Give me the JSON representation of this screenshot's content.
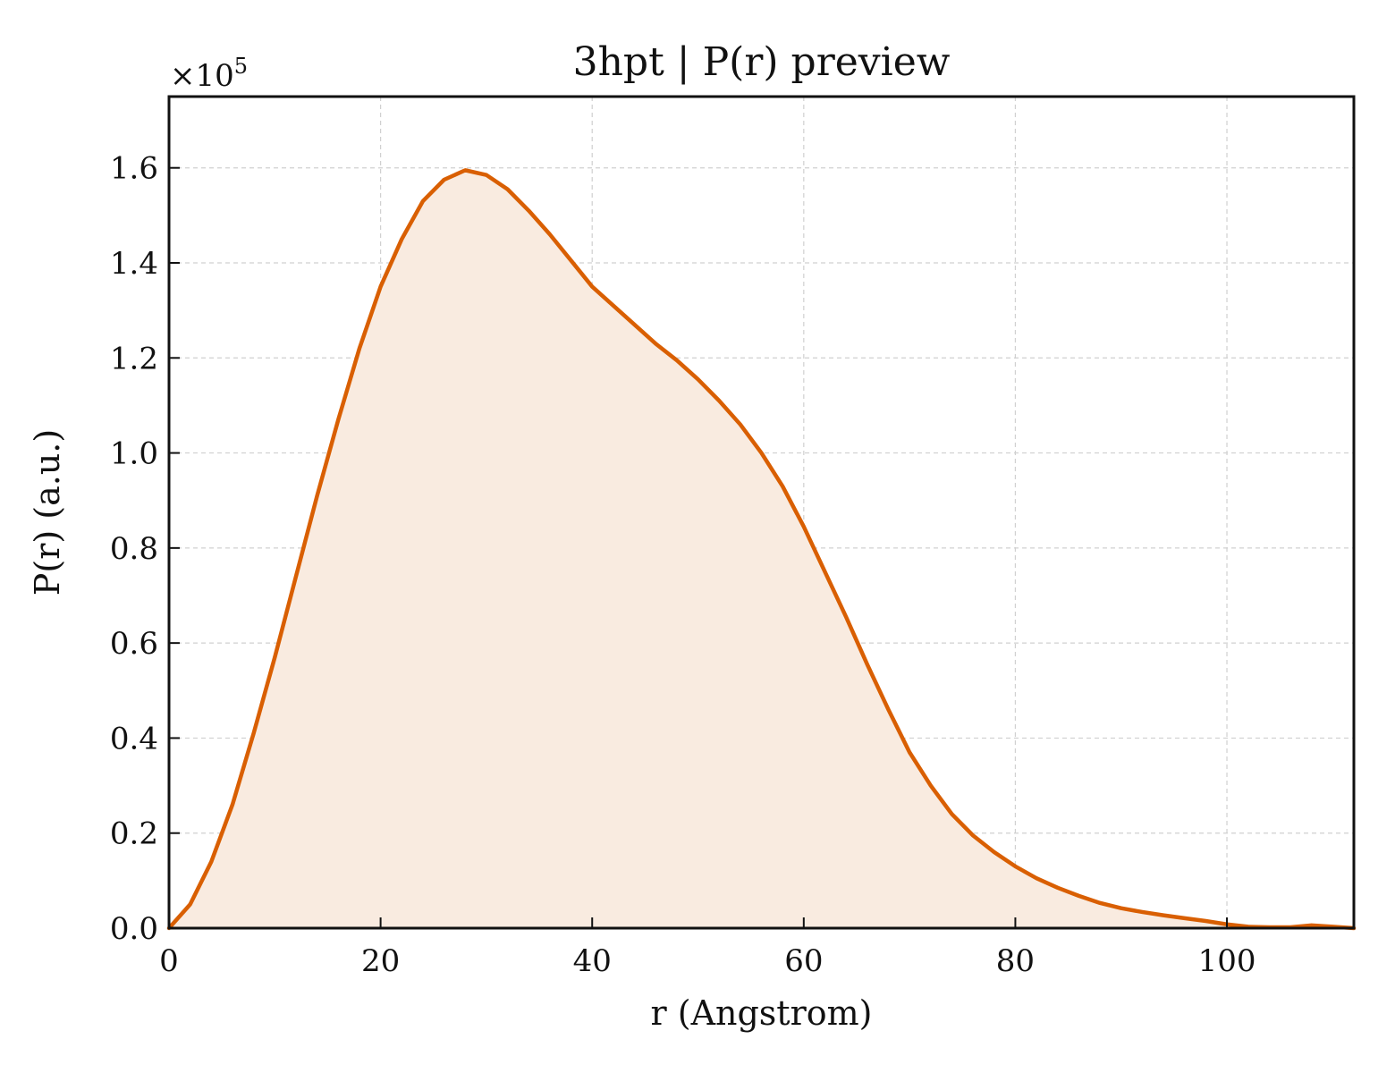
{
  "chart_data": {
    "type": "area",
    "title": "3hpt | P(r) preview",
    "xlabel": "r (Angstrom)",
    "ylabel": "P(r) (a.u.)",
    "y_multiplier_label": "×10",
    "y_multiplier_exponent": "5",
    "xlim": [
      0,
      112
    ],
    "ylim": [
      0,
      1.75
    ],
    "grid": true,
    "line_color": "#d95f02",
    "fill_color": "#f9ebe0",
    "x_ticks": [
      0,
      20,
      40,
      60,
      80,
      100
    ],
    "x_tick_labels": [
      "0",
      "20",
      "40",
      "60",
      "80",
      "100"
    ],
    "y_ticks": [
      0,
      0.2,
      0.4,
      0.6,
      0.8,
      1.0,
      1.2,
      1.4,
      1.6
    ],
    "y_tick_labels": [
      "0.0",
      "0.2",
      "0.4",
      "0.6",
      "0.8",
      "1.0",
      "1.2",
      "1.4",
      "1.6"
    ],
    "series": [
      {
        "x": [
          0,
          2,
          4,
          6,
          8,
          10,
          12,
          14,
          16,
          18,
          20,
          22,
          24,
          26,
          28,
          30,
          32,
          34,
          36,
          38,
          40,
          42,
          44,
          46,
          48,
          50,
          52,
          54,
          56,
          58,
          60,
          62,
          64,
          66,
          68,
          70,
          72,
          74,
          76,
          78,
          80,
          82,
          84,
          86,
          88,
          90,
          92,
          94,
          96,
          98,
          100,
          102,
          104,
          106,
          108,
          110,
          112
        ],
        "y": [
          0.0,
          0.05,
          0.14,
          0.26,
          0.41,
          0.57,
          0.74,
          0.91,
          1.07,
          1.22,
          1.35,
          1.45,
          1.53,
          1.575,
          1.595,
          1.585,
          1.555,
          1.51,
          1.46,
          1.405,
          1.35,
          1.31,
          1.27,
          1.23,
          1.195,
          1.155,
          1.11,
          1.06,
          1.0,
          0.93,
          0.845,
          0.75,
          0.655,
          0.555,
          0.46,
          0.37,
          0.3,
          0.24,
          0.195,
          0.16,
          0.13,
          0.105,
          0.085,
          0.068,
          0.053,
          0.042,
          0.034,
          0.027,
          0.021,
          0.015,
          0.008,
          0.003,
          0.002,
          0.002,
          0.006,
          0.003,
          0.0
        ]
      }
    ]
  }
}
